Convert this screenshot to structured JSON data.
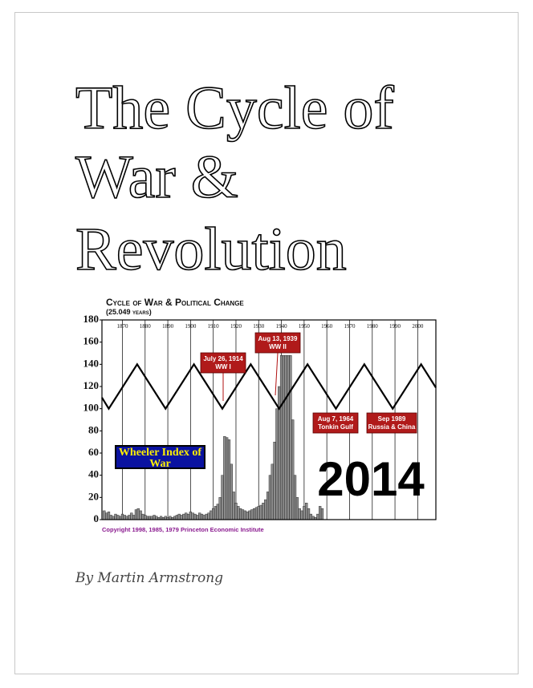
{
  "cover": {
    "title_lines": [
      "The Cycle of",
      "War &",
      "Revolution"
    ],
    "author": "By Martin Armstrong"
  },
  "chart_data": {
    "type": "bar-line",
    "title": "Cycle of War & Political Change",
    "subtitle": "(25.049 years)",
    "xlim": [
      1861,
      2008
    ],
    "xticks": [
      1870,
      1880,
      1890,
      1900,
      1910,
      1920,
      1930,
      1940,
      1950,
      1960,
      1970,
      1980,
      1990,
      2000
    ],
    "ylim": [
      0,
      180
    ],
    "yticks": [
      0,
      20,
      40,
      60,
      80,
      100,
      120,
      140,
      160,
      180
    ],
    "war_index": {
      "name": "Wheeler Index of War",
      "color": "#8c8c8c",
      "x": [
        1862,
        1863,
        1864,
        1865,
        1866,
        1867,
        1868,
        1869,
        1870,
        1871,
        1872,
        1873,
        1874,
        1875,
        1876,
        1877,
        1878,
        1879,
        1880,
        1881,
        1882,
        1883,
        1884,
        1885,
        1886,
        1887,
        1888,
        1889,
        1890,
        1891,
        1892,
        1893,
        1894,
        1895,
        1896,
        1897,
        1898,
        1899,
        1900,
        1901,
        1902,
        1903,
        1904,
        1905,
        1906,
        1907,
        1908,
        1909,
        1910,
        1911,
        1912,
        1913,
        1914,
        1915,
        1916,
        1917,
        1918,
        1919,
        1920,
        1921,
        1922,
        1923,
        1924,
        1925,
        1926,
        1927,
        1928,
        1929,
        1930,
        1931,
        1932,
        1933,
        1934,
        1935,
        1936,
        1937,
        1938,
        1939,
        1940,
        1941,
        1942,
        1943,
        1944,
        1945,
        1946,
        1947,
        1948,
        1949,
        1950,
        1951,
        1952,
        1953,
        1954,
        1955,
        1956,
        1957,
        1958
      ],
      "values": [
        8,
        6,
        7,
        4,
        3,
        5,
        4,
        3,
        5,
        4,
        3,
        4,
        6,
        4,
        9,
        10,
        8,
        5,
        4,
        3,
        3,
        3,
        4,
        3,
        2,
        3,
        2,
        3,
        2,
        3,
        2,
        3,
        4,
        5,
        4,
        5,
        6,
        5,
        7,
        6,
        5,
        4,
        6,
        5,
        4,
        5,
        6,
        8,
        10,
        12,
        14,
        20,
        40,
        75,
        74,
        72,
        50,
        25,
        15,
        12,
        10,
        9,
        8,
        7,
        8,
        9,
        10,
        11,
        12,
        13,
        15,
        18,
        25,
        40,
        50,
        70,
        100,
        120,
        148,
        148,
        148,
        148,
        148,
        90,
        40,
        20,
        10,
        8,
        12,
        15,
        10,
        5,
        3,
        2,
        5,
        12,
        10
      ]
    },
    "cycle": {
      "color": "#000000",
      "x": [
        1861,
        1864,
        1876.5,
        1889,
        1901.5,
        1914,
        1926.5,
        1939,
        1951.5,
        1964,
        1976.5,
        1989,
        2001.5,
        2008
      ],
      "values": [
        110,
        100,
        140,
        100,
        140,
        100,
        140,
        100,
        140,
        100,
        140,
        100,
        140,
        119
      ]
    },
    "annotations": [
      {
        "lines": [
          "July 26, 1914",
          "WW I"
        ]
      },
      {
        "lines": [
          "Aug 13, 1939",
          "WW II"
        ]
      },
      {
        "lines": [
          "Aug 7, 1964",
          "Tonkin Gulf"
        ]
      },
      {
        "lines": [
          "Sep 1989",
          "Russia & China"
        ]
      }
    ],
    "highlight": "2014",
    "copyright": "Copyright 1998, 1985, 1979 Princeton Economic Institute"
  }
}
